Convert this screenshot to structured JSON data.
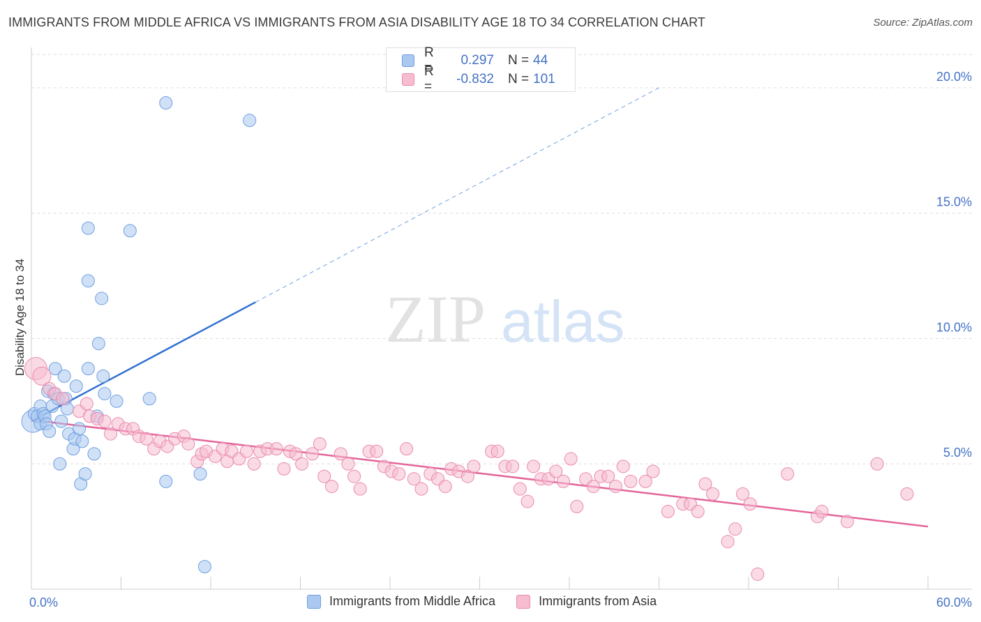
{
  "title": "IMMIGRANTS FROM MIDDLE AFRICA VS IMMIGRANTS FROM ASIA DISABILITY AGE 18 TO 34 CORRELATION CHART",
  "source": "Source: ZipAtlas.com",
  "watermark": {
    "zip": "ZIP",
    "atlas": "atlas"
  },
  "legend": {
    "rows": [
      {
        "r_label": "R =",
        "r_value": "0.297",
        "n_label": "N =",
        "n_value": "44",
        "color": "#aac8f0",
        "border": "#6f9fe0"
      },
      {
        "r_label": "R =",
        "r_value": "-0.832",
        "n_label": "N =",
        "n_value": "101",
        "color": "#f6bcd0",
        "border": "#ea8aab"
      }
    ]
  },
  "bottom_legend": [
    {
      "label": "Immigrants from Middle Africa",
      "color": "#aac8f0",
      "border": "#6f9fe0"
    },
    {
      "label": "Immigrants from Asia",
      "color": "#f6bcd0",
      "border": "#ea8aab"
    }
  ],
  "chart_data": {
    "type": "scatter",
    "title": "IMMIGRANTS FROM MIDDLE AFRICA VS IMMIGRANTS FROM ASIA DISABILITY AGE 18 TO 34 CORRELATION CHART",
    "xlabel": "",
    "ylabel": "Disability Age 18 to 34",
    "xlim": [
      0,
      60
    ],
    "ylim": [
      0,
      21.5
    ],
    "x_tick_labels": [
      "0.0%",
      "60.0%"
    ],
    "y_ticks": [
      5,
      10,
      15,
      20
    ],
    "y_tick_labels": [
      "5.0%",
      "10.0%",
      "15.0%",
      "20.0%"
    ],
    "grid": "horizontal dashed",
    "legend_position": "top-center",
    "series": [
      {
        "name": "Immigrants from Middle Africa",
        "color": "#6f9fe0",
        "fill": "#aac8f0",
        "points": [
          [
            0.1,
            6.7
          ],
          [
            0.2,
            7.0
          ],
          [
            0.4,
            6.9
          ],
          [
            0.6,
            6.6
          ],
          [
            0.6,
            7.3
          ],
          [
            0.8,
            7.0
          ],
          [
            0.9,
            6.9
          ],
          [
            1.0,
            6.6
          ],
          [
            1.1,
            7.9
          ],
          [
            1.2,
            6.3
          ],
          [
            1.4,
            7.3
          ],
          [
            1.5,
            7.8
          ],
          [
            1.6,
            8.8
          ],
          [
            1.8,
            7.6
          ],
          [
            1.9,
            5.0
          ],
          [
            2.0,
            6.7
          ],
          [
            2.2,
            8.5
          ],
          [
            2.3,
            7.6
          ],
          [
            2.4,
            7.2
          ],
          [
            2.5,
            6.2
          ],
          [
            2.8,
            5.6
          ],
          [
            2.9,
            6.0
          ],
          [
            3.0,
            8.1
          ],
          [
            3.2,
            6.4
          ],
          [
            3.3,
            4.2
          ],
          [
            3.4,
            5.9
          ],
          [
            3.6,
            4.6
          ],
          [
            3.8,
            14.4
          ],
          [
            3.8,
            8.8
          ],
          [
            3.8,
            12.3
          ],
          [
            4.2,
            5.4
          ],
          [
            4.4,
            6.9
          ],
          [
            4.5,
            9.8
          ],
          [
            4.7,
            11.6
          ],
          [
            4.8,
            8.5
          ],
          [
            4.9,
            7.8
          ],
          [
            5.7,
            7.5
          ],
          [
            6.6,
            14.3
          ],
          [
            7.9,
            7.6
          ],
          [
            9.0,
            19.4
          ],
          [
            9.0,
            4.3
          ],
          [
            11.3,
            4.6
          ],
          [
            11.6,
            0.9
          ],
          [
            14.6,
            18.7
          ]
        ],
        "trend": {
          "x": [
            0,
            15
          ],
          "y": [
            6.7,
            11.45
          ],
          "extended_to": [
            42,
            20.0
          ]
        }
      },
      {
        "name": "Immigrants from Asia",
        "color": "#ea8aab",
        "fill": "#f6bcd0",
        "points": [
          [
            0.3,
            8.8
          ],
          [
            0.7,
            8.5
          ],
          [
            1.2,
            8.0
          ],
          [
            1.6,
            7.8
          ],
          [
            2.1,
            7.6
          ],
          [
            3.2,
            7.1
          ],
          [
            3.7,
            7.4
          ],
          [
            3.9,
            6.9
          ],
          [
            4.4,
            6.8
          ],
          [
            4.9,
            6.7
          ],
          [
            5.3,
            6.2
          ],
          [
            5.8,
            6.6
          ],
          [
            6.3,
            6.4
          ],
          [
            6.8,
            6.4
          ],
          [
            7.2,
            6.1
          ],
          [
            7.7,
            6.0
          ],
          [
            8.2,
            5.6
          ],
          [
            8.6,
            5.9
          ],
          [
            9.1,
            5.7
          ],
          [
            9.6,
            6.0
          ],
          [
            10.2,
            6.1
          ],
          [
            10.5,
            5.8
          ],
          [
            11.1,
            5.1
          ],
          [
            11.4,
            5.4
          ],
          [
            11.7,
            5.5
          ],
          [
            12.3,
            5.3
          ],
          [
            12.8,
            5.6
          ],
          [
            13.1,
            5.1
          ],
          [
            13.4,
            5.5
          ],
          [
            13.9,
            5.2
          ],
          [
            14.4,
            5.5
          ],
          [
            14.9,
            5.0
          ],
          [
            15.3,
            5.5
          ],
          [
            15.8,
            5.6
          ],
          [
            16.4,
            5.6
          ],
          [
            16.9,
            4.8
          ],
          [
            17.3,
            5.5
          ],
          [
            17.7,
            5.4
          ],
          [
            18.1,
            5.0
          ],
          [
            18.8,
            5.4
          ],
          [
            19.3,
            5.8
          ],
          [
            19.6,
            4.5
          ],
          [
            20.1,
            4.1
          ],
          [
            20.7,
            5.4
          ],
          [
            21.2,
            5.0
          ],
          [
            21.6,
            4.5
          ],
          [
            22.0,
            4.0
          ],
          [
            22.6,
            5.5
          ],
          [
            23.1,
            5.5
          ],
          [
            23.6,
            4.9
          ],
          [
            24.1,
            4.7
          ],
          [
            24.6,
            4.6
          ],
          [
            25.1,
            5.6
          ],
          [
            25.6,
            4.4
          ],
          [
            26.1,
            4.0
          ],
          [
            26.7,
            4.6
          ],
          [
            27.2,
            4.4
          ],
          [
            27.7,
            4.1
          ],
          [
            28.1,
            4.8
          ],
          [
            28.6,
            4.7
          ],
          [
            29.2,
            4.5
          ],
          [
            29.6,
            4.9
          ],
          [
            30.8,
            5.5
          ],
          [
            31.2,
            5.5
          ],
          [
            31.7,
            4.9
          ],
          [
            32.2,
            4.9
          ],
          [
            32.7,
            4.0
          ],
          [
            33.2,
            3.5
          ],
          [
            33.6,
            4.9
          ],
          [
            34.1,
            4.4
          ],
          [
            34.6,
            4.4
          ],
          [
            35.1,
            4.7
          ],
          [
            35.6,
            4.3
          ],
          [
            36.1,
            5.2
          ],
          [
            36.5,
            3.3
          ],
          [
            37.1,
            4.4
          ],
          [
            37.6,
            4.1
          ],
          [
            38.1,
            4.5
          ],
          [
            38.6,
            4.5
          ],
          [
            39.1,
            4.1
          ],
          [
            39.6,
            4.9
          ],
          [
            40.1,
            4.3
          ],
          [
            41.1,
            4.3
          ],
          [
            41.6,
            4.7
          ],
          [
            42.6,
            3.1
          ],
          [
            43.6,
            3.4
          ],
          [
            44.1,
            3.4
          ],
          [
            44.6,
            3.1
          ],
          [
            45.1,
            4.2
          ],
          [
            45.6,
            3.8
          ],
          [
            46.6,
            1.9
          ],
          [
            47.1,
            2.4
          ],
          [
            47.6,
            3.8
          ],
          [
            48.1,
            3.4
          ],
          [
            48.6,
            0.6
          ],
          [
            50.6,
            4.6
          ],
          [
            52.6,
            2.9
          ],
          [
            52.9,
            3.1
          ],
          [
            54.6,
            2.7
          ],
          [
            56.6,
            5.0
          ],
          [
            58.6,
            3.8
          ]
        ],
        "trend": {
          "x": [
            0,
            60
          ],
          "y": [
            6.75,
            2.5
          ]
        }
      }
    ]
  }
}
